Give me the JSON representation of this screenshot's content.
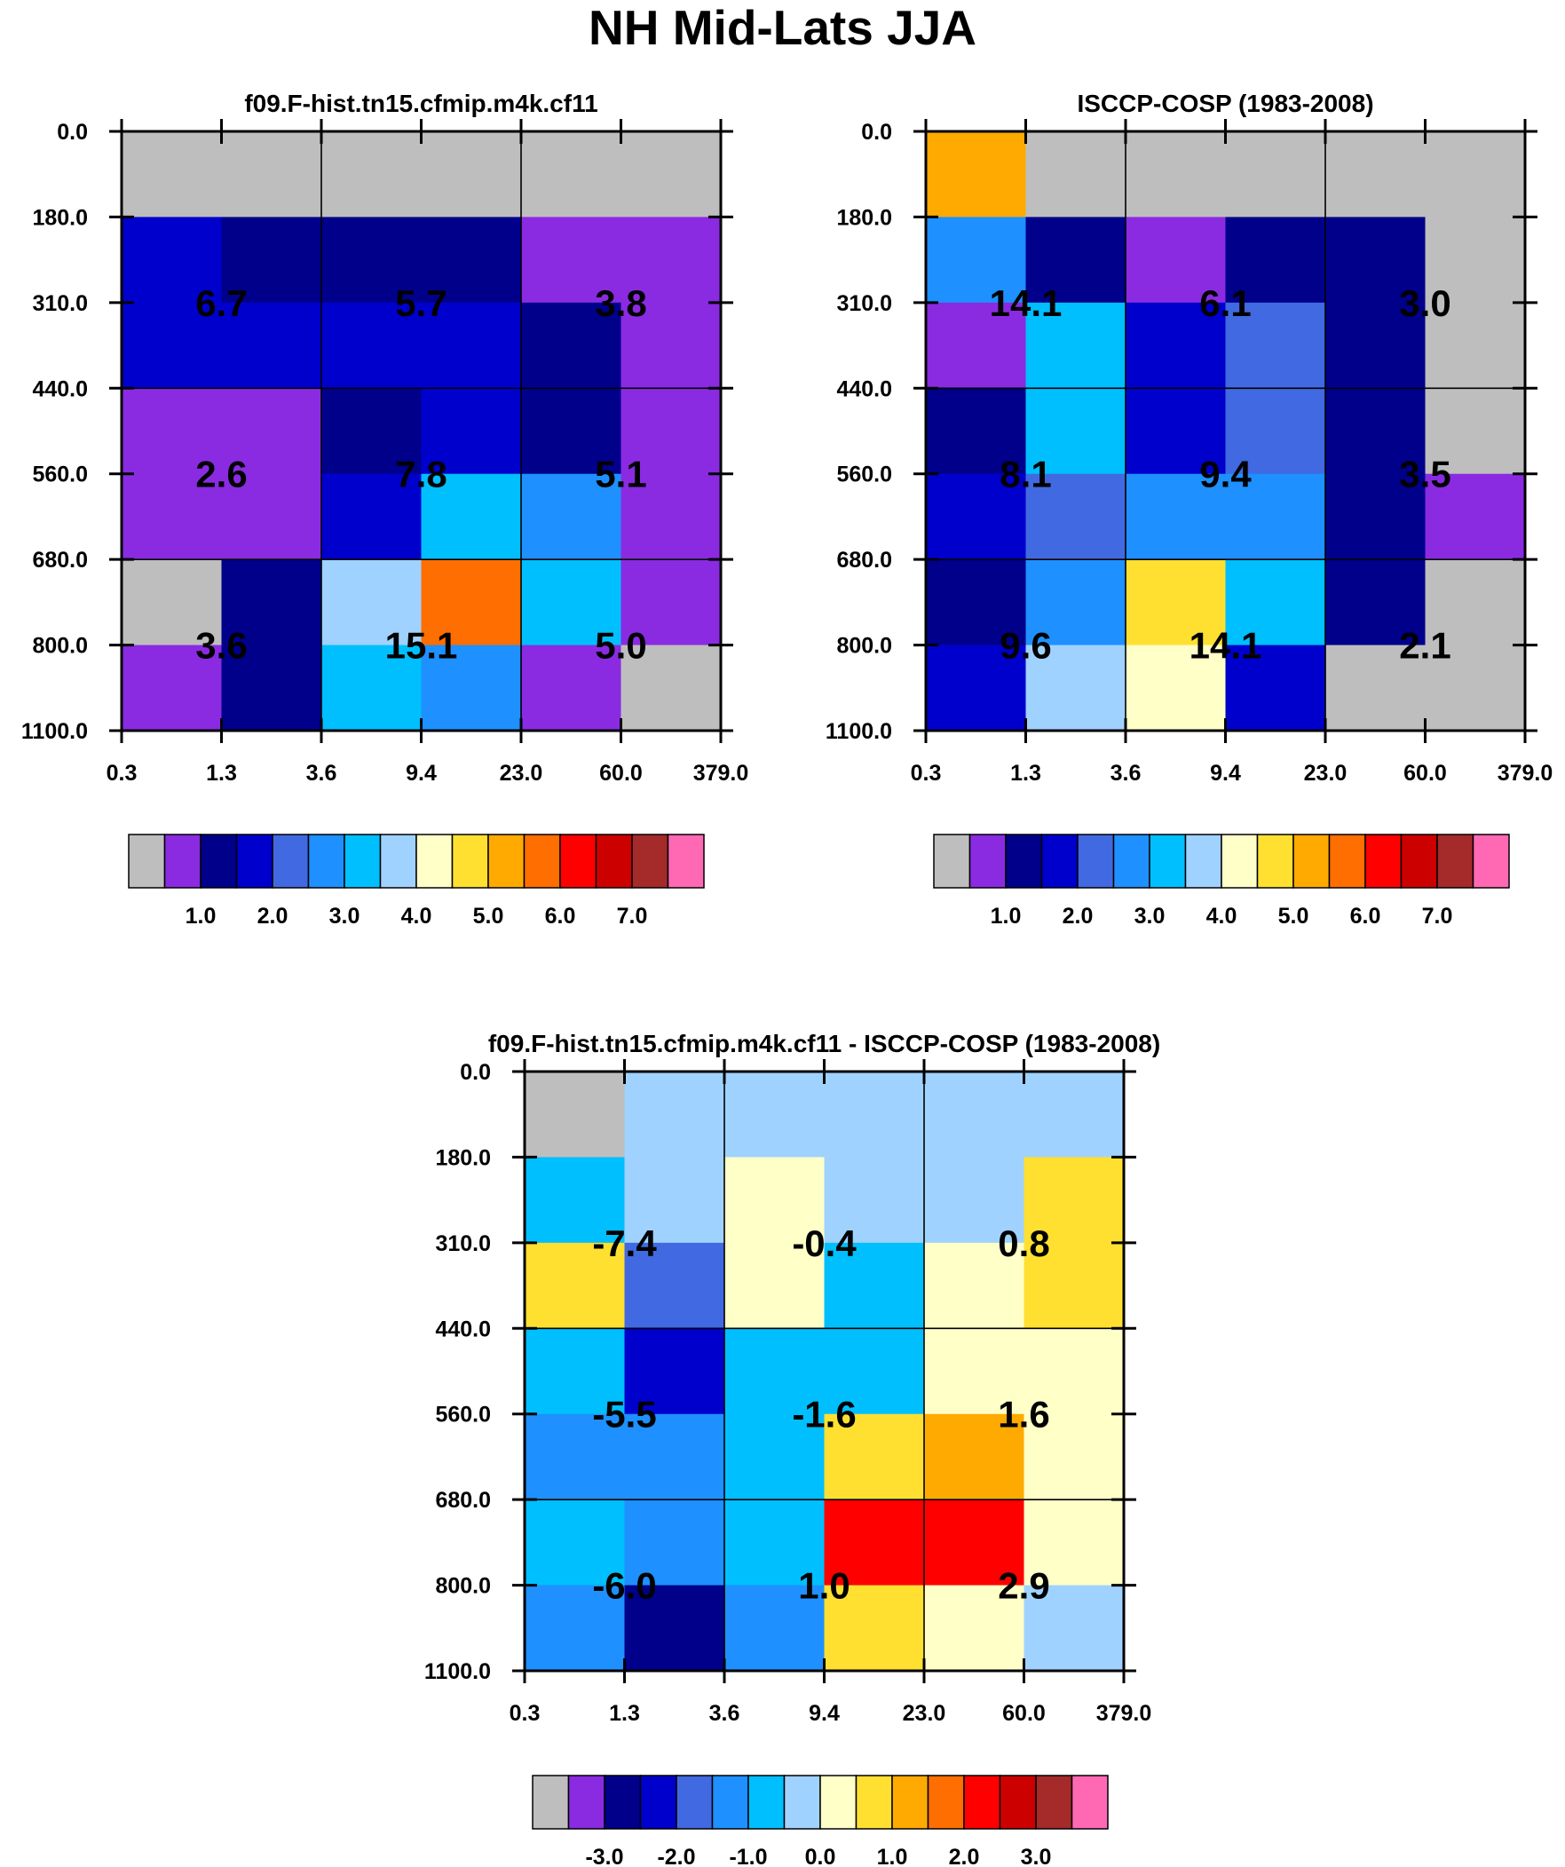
{
  "title": "NH Mid-Lats JJA",
  "palette": {
    "grey": "#BEBEBE",
    "purple": "#8A2BE2",
    "navy": "#00008B",
    "medblue": "#0000CD",
    "royal": "#4169E1",
    "dodger": "#1E90FF",
    "deepsky": "#00BFFF",
    "lightsky": "#A0D2FF",
    "cream": "#FFFFC8",
    "gold": "#FFE030",
    "orange": "#FFAA00",
    "dorange": "#FF6E00",
    "red": "#FF0000",
    "dred": "#CD0000",
    "brown": "#A52A2A",
    "pink": "#FF69B4"
  },
  "chart_data": [
    {
      "type": "heatmap",
      "title": "f09.F-hist.tn15.cfmip.m4k.cf11",
      "x_ticks": [
        "0.3",
        "1.3",
        "3.6",
        "9.4",
        "23.0",
        "60.0",
        "379.0"
      ],
      "y_ticks": [
        "0.0",
        "180.0",
        "310.0",
        "440.0",
        "560.0",
        "680.0",
        "800.0",
        "1100.0"
      ],
      "cells": [
        [
          "grey",
          "grey",
          "grey",
          "grey",
          "grey",
          "grey"
        ],
        [
          "medblue",
          "navy",
          "navy",
          "navy",
          "purple",
          "purple"
        ],
        [
          "medblue",
          "medblue",
          "medblue",
          "medblue",
          "navy",
          "purple"
        ],
        [
          "purple",
          "purple",
          "navy",
          "medblue",
          "navy",
          "purple"
        ],
        [
          "purple",
          "purple",
          "medblue",
          "deepsky",
          "dodger",
          "purple"
        ],
        [
          "grey",
          "navy",
          "lightsky",
          "dorange",
          "deepsky",
          "purple"
        ],
        [
          "purple",
          "navy",
          "deepsky",
          "dodger",
          "purple",
          "grey"
        ]
      ],
      "box_values": [
        [
          "6.7",
          "5.7",
          "3.8"
        ],
        [
          "2.6",
          "7.8",
          "5.1"
        ],
        [
          "3.6",
          "15.1",
          "5.0"
        ]
      ],
      "colorbar_labels": [
        "1.0",
        "2.0",
        "3.0",
        "4.0",
        "5.0",
        "6.0",
        "7.0"
      ]
    },
    {
      "type": "heatmap",
      "title": "ISCCP-COSP (1983-2008)",
      "x_ticks": [
        "0.3",
        "1.3",
        "3.6",
        "9.4",
        "23.0",
        "60.0",
        "379.0"
      ],
      "y_ticks": [
        "0.0",
        "180.0",
        "310.0",
        "440.0",
        "560.0",
        "680.0",
        "800.0",
        "1100.0"
      ],
      "cells": [
        [
          "orange",
          "grey",
          "grey",
          "grey",
          "grey",
          "grey"
        ],
        [
          "dodger",
          "navy",
          "purple",
          "navy",
          "navy",
          "grey"
        ],
        [
          "purple",
          "deepsky",
          "medblue",
          "royal",
          "navy",
          "grey"
        ],
        [
          "navy",
          "deepsky",
          "medblue",
          "royal",
          "navy",
          "grey"
        ],
        [
          "medblue",
          "royal",
          "dodger",
          "dodger",
          "navy",
          "purple"
        ],
        [
          "navy",
          "dodger",
          "gold",
          "deepsky",
          "navy",
          "grey"
        ],
        [
          "medblue",
          "lightsky",
          "cream",
          "medblue",
          "grey",
          "grey"
        ]
      ],
      "box_values": [
        [
          "14.1",
          "6.1",
          "3.0"
        ],
        [
          "8.1",
          "9.4",
          "3.5"
        ],
        [
          "9.6",
          "14.1",
          "2.1"
        ]
      ],
      "colorbar_labels": [
        "1.0",
        "2.0",
        "3.0",
        "4.0",
        "5.0",
        "6.0",
        "7.0"
      ]
    },
    {
      "type": "heatmap",
      "title": "f09.F-hist.tn15.cfmip.m4k.cf11 - ISCCP-COSP (1983-2008)",
      "x_ticks": [
        "0.3",
        "1.3",
        "3.6",
        "9.4",
        "23.0",
        "60.0",
        "379.0"
      ],
      "y_ticks": [
        "0.0",
        "180.0",
        "310.0",
        "440.0",
        "560.0",
        "680.0",
        "800.0",
        "1100.0"
      ],
      "cells": [
        [
          "grey",
          "lightsky",
          "lightsky",
          "lightsky",
          "lightsky",
          "lightsky"
        ],
        [
          "deepsky",
          "lightsky",
          "cream",
          "lightsky",
          "lightsky",
          "gold"
        ],
        [
          "gold",
          "royal",
          "cream",
          "deepsky",
          "cream",
          "gold"
        ],
        [
          "deepsky",
          "medblue",
          "deepsky",
          "deepsky",
          "cream",
          "cream"
        ],
        [
          "dodger",
          "dodger",
          "deepsky",
          "gold",
          "orange",
          "cream"
        ],
        [
          "deepsky",
          "dodger",
          "deepsky",
          "red",
          "red",
          "cream"
        ],
        [
          "dodger",
          "navy",
          "dodger",
          "gold",
          "cream",
          "lightsky"
        ]
      ],
      "box_values": [
        [
          "-7.4",
          "-0.4",
          "0.8"
        ],
        [
          "-5.5",
          "-1.6",
          "1.6"
        ],
        [
          "-6.0",
          "1.0",
          "2.9"
        ]
      ],
      "colorbar_labels": [
        "-3.0",
        "-2.0",
        "-1.0",
        "0.0",
        "1.0",
        "2.0",
        "3.0"
      ]
    }
  ],
  "colorbar_colors": [
    "grey",
    "purple",
    "navy",
    "medblue",
    "royal",
    "dodger",
    "deepsky",
    "lightsky",
    "cream",
    "gold",
    "orange",
    "dorange",
    "red",
    "dred",
    "brown",
    "pink"
  ]
}
